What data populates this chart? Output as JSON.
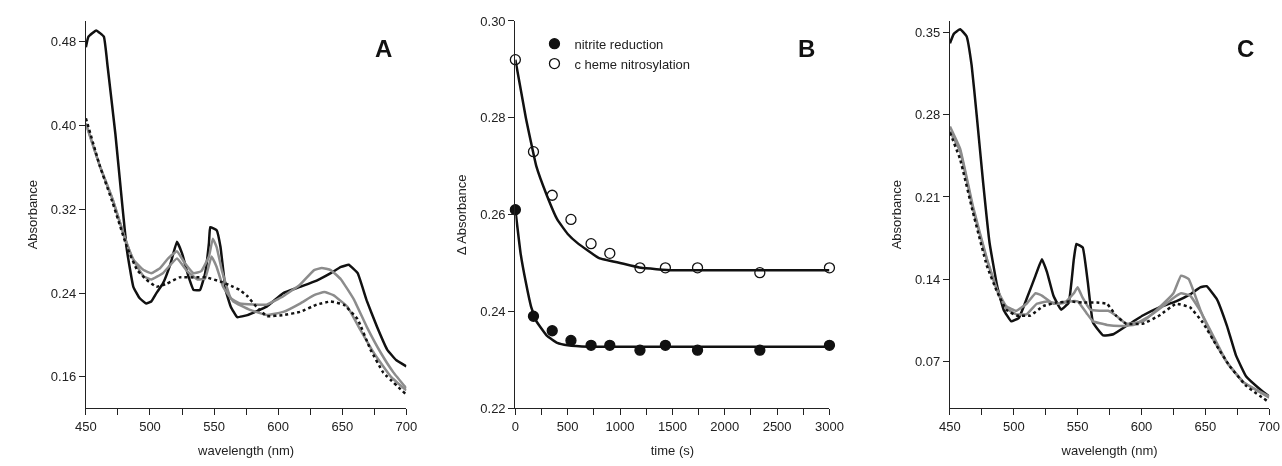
{
  "chart_data": [
    {
      "type": "line",
      "title": "A",
      "xlabel": "wavelength (nm)",
      "ylabel": "Absorbance",
      "xlim": [
        450,
        700
      ],
      "ylim": [
        0.13,
        0.5
      ],
      "xticks": [
        450,
        {
          "value": 475,
          "label": null
        },
        500,
        {
          "value": 525,
          "label": null
        },
        550,
        {
          "value": 575,
          "label": null
        },
        600,
        {
          "value": 625,
          "label": null
        },
        650,
        {
          "value": 675,
          "label": null
        },
        700
      ],
      "yticks": [
        0.16,
        0.24,
        0.32,
        {
          "value": 0.4,
          "label": "0.40"
        },
        0.48
      ],
      "series": [
        {
          "color": "#111111",
          "line_style": "solid",
          "x": [
            450,
            452,
            458,
            464,
            467,
            473,
            478,
            482,
            487,
            492,
            497,
            501,
            505,
            510,
            516,
            521,
            525,
            530,
            534,
            539,
            543,
            546,
            547,
            552,
            555,
            559,
            563,
            568,
            576,
            591,
            604,
            617,
            630,
            641,
            649,
            655,
            662,
            669,
            677,
            685,
            692,
            700
          ],
          "values": [
            0.475,
            0.485,
            0.491,
            0.485,
            0.456,
            0.392,
            0.329,
            0.281,
            0.246,
            0.235,
            0.23,
            0.232,
            0.24,
            0.249,
            0.268,
            0.289,
            0.278,
            0.256,
            0.243,
            0.243,
            0.259,
            0.288,
            0.303,
            0.3,
            0.284,
            0.243,
            0.227,
            0.217,
            0.219,
            0.227,
            0.24,
            0.246,
            0.252,
            0.259,
            0.265,
            0.267,
            0.259,
            0.233,
            0.208,
            0.186,
            0.176,
            0.17
          ]
        },
        {
          "color": "#8c8c8c",
          "line_style": "solid",
          "x": [
            450,
            461,
            471,
            480,
            487,
            495,
            501,
            508,
            514,
            521,
            527,
            534,
            540,
            546,
            549,
            552,
            556,
            563,
            570,
            581,
            591,
            604,
            617,
            628,
            634,
            641,
            649,
            659,
            669,
            680,
            690,
            700
          ],
          "values": [
            0.402,
            0.361,
            0.329,
            0.294,
            0.272,
            0.262,
            0.259,
            0.264,
            0.273,
            0.28,
            0.269,
            0.259,
            0.261,
            0.275,
            0.292,
            0.284,
            0.262,
            0.235,
            0.23,
            0.229,
            0.229,
            0.237,
            0.248,
            0.262,
            0.264,
            0.262,
            0.253,
            0.234,
            0.208,
            0.183,
            0.164,
            0.149
          ]
        },
        {
          "color": "#8c8c8c",
          "line_style": "solid",
          "x": [
            450,
            461,
            471,
            480,
            487,
            495,
            501,
            510,
            521,
            529,
            537,
            543,
            548,
            552,
            557,
            565,
            578,
            591,
            604,
            617,
            628,
            636,
            643,
            654,
            664,
            675,
            688,
            700
          ],
          "values": [
            0.402,
            0.361,
            0.329,
            0.294,
            0.272,
            0.256,
            0.253,
            0.259,
            0.273,
            0.261,
            0.253,
            0.254,
            0.275,
            0.265,
            0.246,
            0.232,
            0.224,
            0.219,
            0.222,
            0.23,
            0.238,
            0.241,
            0.238,
            0.227,
            0.205,
            0.182,
            0.16,
            0.147
          ]
        },
        {
          "color": "#111111",
          "line_style": "dotted",
          "x": [
            450,
            461,
            471,
            482,
            490,
            497,
            505,
            513,
            523,
            534,
            544,
            555,
            565,
            570,
            576,
            583,
            591,
            604,
            617,
            630,
            641,
            651,
            662,
            672,
            682,
            700
          ],
          "values": [
            0.407,
            0.361,
            0.326,
            0.284,
            0.262,
            0.253,
            0.246,
            0.249,
            0.255,
            0.255,
            0.255,
            0.251,
            0.246,
            0.243,
            0.237,
            0.227,
            0.218,
            0.219,
            0.222,
            0.229,
            0.232,
            0.229,
            0.215,
            0.186,
            0.164,
            0.143
          ]
        }
      ]
    },
    {
      "type": "line",
      "title": "B",
      "xlabel": "time (s)",
      "ylabel": "∆ Absorbance",
      "xlim": [
        0,
        3000
      ],
      "ylim": [
        0.22,
        0.3
      ],
      "legend": "top left",
      "xticks": [
        0,
        {
          "value": 250,
          "label": null
        },
        500,
        {
          "value": 750,
          "label": null
        },
        1000,
        {
          "value": 1250,
          "label": null
        },
        1500,
        {
          "value": 1750,
          "label": null
        },
        2000,
        {
          "value": 2250,
          "label": null
        },
        2500,
        {
          "value": 2750,
          "label": null
        },
        3000
      ],
      "yticks": [
        0.22,
        0.24,
        0.26,
        0.28,
        {
          "value": 0.3,
          "label": "0.30"
        }
      ],
      "series": [
        {
          "type": "scatter",
          "name": "nitrite reduction",
          "color": "#111111",
          "marker": "circle",
          "x": [
            0,
            173,
            352,
            531,
            723,
            902,
            1190,
            1433,
            1740,
            2335,
            3000
          ],
          "values": [
            0.261,
            0.239,
            0.236,
            0.234,
            0.233,
            0.233,
            0.232,
            0.233,
            0.232,
            0.232,
            0.233
          ]
        },
        {
          "type": "scatter",
          "name": "c heme nitrosylation",
          "color": "#111111",
          "marker": "circle-open",
          "x": [
            0,
            173,
            352,
            531,
            723,
            902,
            1190,
            1433,
            1740,
            2335,
            3000
          ],
          "values": [
            0.292,
            0.273,
            0.264,
            0.259,
            0.254,
            0.252,
            0.249,
            0.249,
            0.249,
            0.248,
            0.249
          ]
        },
        {
          "type": "line",
          "color": "#111111",
          "line_style": "solid",
          "x": [
            0,
            50,
            100,
            150,
            200,
            300,
            400,
            500,
            700,
            1000,
            3000
          ],
          "values": [
            0.261,
            0.252,
            0.246,
            0.241,
            0.238,
            0.235,
            0.2335,
            0.233,
            0.2327,
            0.2327,
            0.2327
          ]
        },
        {
          "type": "line",
          "color": "#111111",
          "line_style": "solid",
          "x": [
            0,
            100,
            200,
            300,
            400,
            500,
            600,
            800,
            1000,
            1200,
            1500,
            2000,
            3000
          ],
          "values": [
            0.292,
            0.28,
            0.27,
            0.264,
            0.259,
            0.256,
            0.254,
            0.251,
            0.25,
            0.249,
            0.2485,
            0.2485,
            0.2485
          ]
        }
      ]
    },
    {
      "type": "line",
      "title": "C",
      "xlabel": "wavelength (nm)",
      "ylabel": "Absorbance",
      "xlim": [
        450,
        700
      ],
      "ylim": [
        0.03,
        0.36
      ],
      "xticks": [
        450,
        {
          "value": 475,
          "label": null
        },
        500,
        {
          "value": 525,
          "label": null
        },
        550,
        {
          "value": 575,
          "label": null
        },
        600,
        {
          "value": 625,
          "label": null
        },
        650,
        {
          "value": 675,
          "label": null
        },
        700
      ],
      "yticks": [
        0.07,
        0.14,
        0.21,
        0.28,
        0.35
      ],
      "series": [
        {
          "color": "#111111",
          "line_style": "solid",
          "x": [
            450,
            453,
            458,
            463,
            467,
            471,
            476,
            481,
            487,
            492,
            498,
            504,
            510,
            517,
            522,
            526,
            531,
            537,
            543,
            547,
            549,
            554,
            558,
            562,
            570,
            578,
            588,
            601,
            614,
            627,
            638,
            646,
            651,
            659,
            667,
            674,
            682,
            693,
            700
          ],
          "values": [
            0.341,
            0.349,
            0.353,
            0.347,
            0.322,
            0.279,
            0.222,
            0.171,
            0.134,
            0.114,
            0.104,
            0.107,
            0.123,
            0.143,
            0.157,
            0.146,
            0.126,
            0.114,
            0.12,
            0.157,
            0.17,
            0.167,
            0.137,
            0.103,
            0.092,
            0.093,
            0.1,
            0.109,
            0.116,
            0.121,
            0.127,
            0.133,
            0.134,
            0.123,
            0.1,
            0.075,
            0.057,
            0.046,
            0.04
          ]
        },
        {
          "color": "#8c8c8c",
          "line_style": "solid",
          "x": [
            450,
            458,
            468,
            479,
            487,
            494,
            502,
            510,
            517,
            522,
            531,
            541,
            547,
            550,
            554,
            560,
            567,
            574,
            580,
            588,
            601,
            614,
            625,
            631,
            637,
            646,
            656,
            667,
            680,
            700
          ],
          "values": [
            0.27,
            0.251,
            0.202,
            0.157,
            0.131,
            0.117,
            0.113,
            0.119,
            0.128,
            0.126,
            0.119,
            0.121,
            0.128,
            0.133,
            0.124,
            0.114,
            0.113,
            0.113,
            0.109,
            0.102,
            0.104,
            0.116,
            0.128,
            0.143,
            0.14,
            0.114,
            0.089,
            0.069,
            0.052,
            0.039
          ]
        },
        {
          "color": "#8c8c8c",
          "line_style": "solid",
          "x": [
            450,
            458,
            468,
            479,
            487,
            494,
            502,
            510,
            518,
            526,
            536,
            544,
            550,
            557,
            562,
            573,
            583,
            594,
            607,
            617,
            625,
            631,
            638,
            646,
            656,
            667,
            680,
            700
          ],
          "values": [
            0.266,
            0.249,
            0.2,
            0.156,
            0.13,
            0.115,
            0.11,
            0.11,
            0.119,
            0.121,
            0.119,
            0.121,
            0.121,
            0.111,
            0.104,
            0.101,
            0.1,
            0.101,
            0.109,
            0.117,
            0.124,
            0.128,
            0.126,
            0.113,
            0.092,
            0.069,
            0.052,
            0.04
          ]
        },
        {
          "color": "#111111",
          "line_style": "dotted",
          "x": [
            450,
            458,
            468,
            479,
            487,
            494,
            502,
            513,
            523,
            533,
            544,
            554,
            565,
            573,
            580,
            588,
            601,
            614,
            627,
            638,
            648,
            659,
            669,
            682,
            700
          ],
          "values": [
            0.265,
            0.242,
            0.197,
            0.151,
            0.129,
            0.114,
            0.109,
            0.109,
            0.117,
            0.12,
            0.121,
            0.12,
            0.12,
            0.119,
            0.109,
            0.102,
            0.102,
            0.109,
            0.119,
            0.116,
            0.103,
            0.083,
            0.066,
            0.049,
            0.035
          ]
        }
      ]
    }
  ]
}
